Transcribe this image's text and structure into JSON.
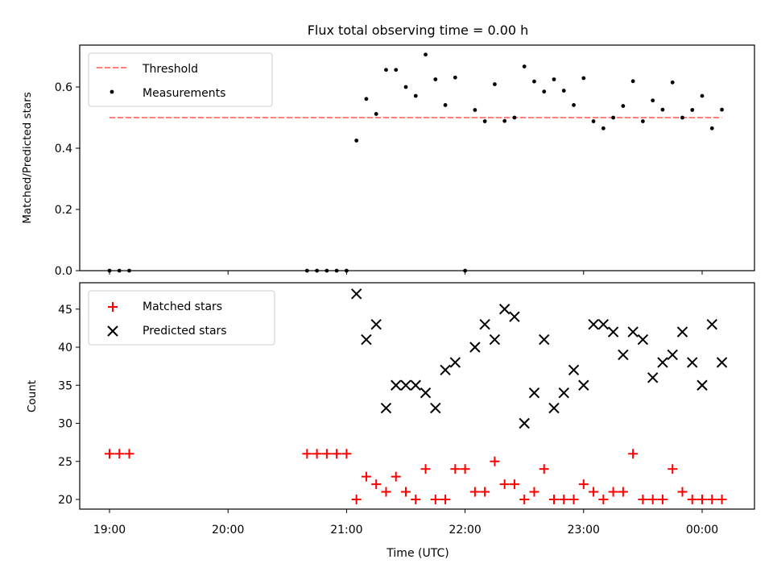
{
  "chart_data": [
    {
      "type": "scatter",
      "title": "Flux total observing time = 0.00 h",
      "xlabel": "",
      "ylabel": "Matched/Predicted stars",
      "ylim": [
        0.0,
        0.74
      ],
      "yticks": [
        "0.0",
        "0.2",
        "0.4",
        "0.6"
      ],
      "ytick_values": [
        0.0,
        0.2,
        0.4,
        0.6
      ],
      "legend_position": "top-left",
      "threshold": {
        "name": "Threshold",
        "value": 0.5,
        "x_start": "19:00",
        "x_end": "00:10",
        "color": "#ff7f7f"
      },
      "series": [
        {
          "name": "Measurements",
          "color": "#000000",
          "x": [
            "19:00",
            "19:05",
            "19:10",
            "20:40",
            "20:45",
            "20:50",
            "20:55",
            "21:00",
            "21:05",
            "21:10",
            "21:15",
            "21:20",
            "21:25",
            "21:30",
            "21:35",
            "21:40",
            "21:45",
            "21:50",
            "21:55",
            "22:00",
            "22:05",
            "22:10",
            "22:15",
            "22:20",
            "22:25",
            "22:30",
            "22:35",
            "22:40",
            "22:45",
            "22:50",
            "22:55",
            "23:00",
            "23:05",
            "23:10",
            "23:15",
            "23:20",
            "23:25",
            "23:30",
            "23:35",
            "23:40",
            "23:45",
            "23:50",
            "23:55",
            "00:00",
            "00:05",
            "00:10"
          ],
          "y": [
            0.0,
            0.0,
            0.0,
            0.0,
            0.0,
            0.0,
            0.0,
            0.0,
            0.425,
            0.561,
            0.512,
            0.656,
            0.656,
            0.6,
            0.571,
            0.706,
            0.625,
            0.541,
            0.631,
            0.0,
            0.525,
            0.488,
            0.609,
            0.489,
            0.5,
            0.667,
            0.618,
            0.585,
            0.625,
            0.588,
            0.541,
            0.629,
            0.488,
            0.465,
            0.5,
            0.538,
            0.619,
            0.488,
            0.556,
            0.526,
            0.615,
            0.5,
            0.525,
            0.571,
            0.465,
            0.526
          ]
        }
      ]
    },
    {
      "type": "scatter",
      "title": "",
      "xlabel": "Time (UTC)",
      "ylabel": "Count",
      "ylim": [
        18.5,
        48.5
      ],
      "yticks": [
        "20",
        "25",
        "30",
        "35",
        "40",
        "45"
      ],
      "ytick_values": [
        20,
        25,
        30,
        35,
        40,
        45
      ],
      "xticks": [
        "19:00",
        "20:00",
        "21:00",
        "22:00",
        "23:00",
        "00:00"
      ],
      "legend_position": "top-left",
      "series": [
        {
          "name": "Matched stars",
          "color": "#ff0000",
          "marker": "plus",
          "x": [
            "19:00",
            "19:05",
            "19:10",
            "20:40",
            "20:45",
            "20:50",
            "20:55",
            "21:00",
            "21:05",
            "21:10",
            "21:15",
            "21:20",
            "21:25",
            "21:30",
            "21:35",
            "21:40",
            "21:45",
            "21:50",
            "21:55",
            "22:00",
            "22:05",
            "22:10",
            "22:15",
            "22:20",
            "22:25",
            "22:30",
            "22:35",
            "22:40",
            "22:45",
            "22:50",
            "22:55",
            "23:00",
            "23:05",
            "23:10",
            "23:15",
            "23:20",
            "23:25",
            "23:30",
            "23:35",
            "23:40",
            "23:45",
            "23:50",
            "23:55",
            "00:00",
            "00:05",
            "00:10"
          ],
          "y": [
            26,
            26,
            26,
            26,
            26,
            26,
            26,
            26,
            20,
            23,
            22,
            21,
            23,
            21,
            20,
            24,
            20,
            20,
            24,
            24,
            21,
            21,
            25,
            22,
            22,
            20,
            21,
            24,
            20,
            20,
            20,
            22,
            21,
            20,
            21,
            21,
            26,
            20,
            20,
            20,
            24,
            21,
            20,
            20,
            20,
            20
          ]
        },
        {
          "name": "Predicted stars",
          "color": "#000000",
          "marker": "x",
          "x": [
            "21:05",
            "21:10",
            "21:15",
            "21:20",
            "21:25",
            "21:30",
            "21:35",
            "21:40",
            "21:45",
            "21:50",
            "21:55",
            "22:05",
            "22:10",
            "22:15",
            "22:20",
            "22:25",
            "22:30",
            "22:35",
            "22:40",
            "22:45",
            "22:50",
            "22:55",
            "23:00",
            "23:05",
            "23:10",
            "23:15",
            "23:20",
            "23:25",
            "23:30",
            "23:35",
            "23:40",
            "23:45",
            "23:50",
            "23:55",
            "00:00",
            "00:05",
            "00:10"
          ],
          "y": [
            47,
            41,
            43,
            32,
            35,
            35,
            35,
            34,
            32,
            37,
            38,
            40,
            43,
            41,
            45,
            44,
            30,
            34,
            41,
            32,
            34,
            37,
            35,
            43,
            43,
            42,
            39,
            42,
            41,
            36,
            38,
            39,
            42,
            38,
            35,
            43,
            38
          ]
        }
      ]
    }
  ]
}
